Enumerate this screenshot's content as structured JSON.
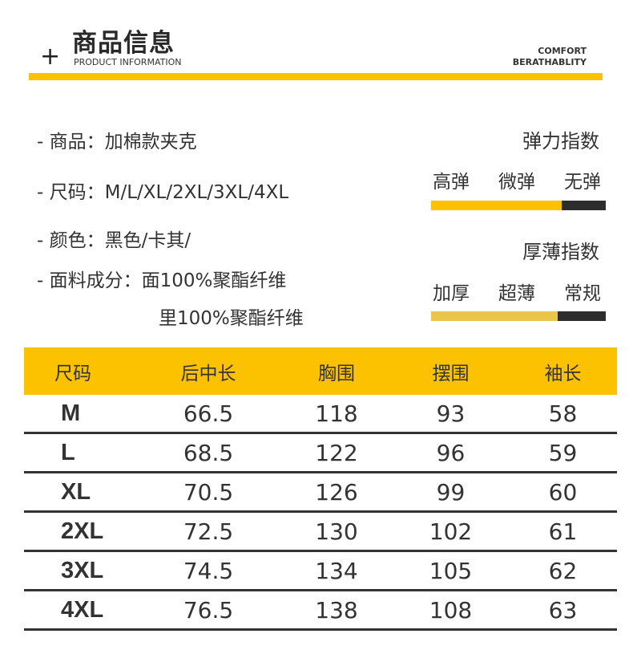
{
  "header": {
    "title": "商品信息",
    "subtitle": "PRODUCT INFORMATION",
    "comfort_line1": "COMFORT",
    "comfort_line2": "BERATHABLITY",
    "plus_icon": "plus-icon",
    "accent": "#fcc200"
  },
  "info": [
    "- 商品：加棉款夹克",
    "- 尺码：M/L/XL/2XL/3XL/4XL",
    "- 颜色：黑色/卡其/",
    "- 面料成分：面100%聚酯纤维",
    "里100%聚酯纤维"
  ],
  "elasticity": {
    "title": "弹力指数",
    "levels": [
      "高弹",
      "微弹",
      "无弹"
    ],
    "selected": "无弹"
  },
  "thickness": {
    "title": "厚薄指数",
    "levels": [
      "加厚",
      "超薄",
      "常规"
    ],
    "selected": "常规"
  },
  "size_table": {
    "headers": [
      "尺码",
      "后中长",
      "胸围",
      "摆围",
      "袖长"
    ],
    "rows": [
      [
        "M",
        "66.5",
        "118",
        "93",
        "58"
      ],
      [
        "L",
        "68.5",
        "122",
        "96",
        "59"
      ],
      [
        "XL",
        "70.5",
        "126",
        "99",
        "60"
      ],
      [
        "2XL",
        "72.5",
        "130",
        "102",
        "61"
      ],
      [
        "3XL",
        "74.5",
        "134",
        "105",
        "62"
      ],
      [
        "4XL",
        "76.5",
        "138",
        "108",
        "63"
      ]
    ]
  }
}
